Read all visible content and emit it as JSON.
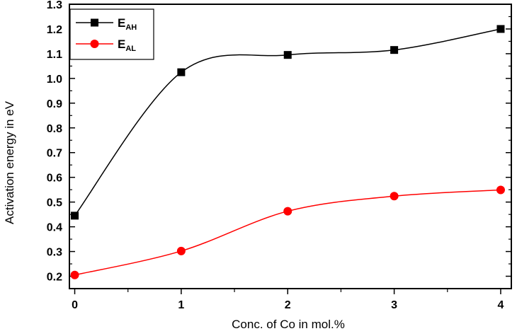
{
  "chart_data": {
    "type": "line",
    "title": "",
    "xlabel": "Conc. of Co in mol.%",
    "ylabel": "Activation energy in eV",
    "xlim": [
      -0.05,
      4.1
    ],
    "ylim": [
      0.15,
      1.3
    ],
    "xticks": [
      0,
      1,
      2,
      3,
      4
    ],
    "xtick_labels": [
      "0",
      "1",
      "2",
      "3",
      "4"
    ],
    "yticks": [
      0.2,
      0.3,
      0.4,
      0.5,
      0.6,
      0.7,
      0.8,
      0.9,
      1.0,
      1.1,
      1.2,
      1.3
    ],
    "ytick_labels": [
      "0.2",
      "0.3",
      "0.4",
      "0.5",
      "0.6",
      "0.7",
      "0.8",
      "0.9",
      "1.0",
      "1.1",
      "1.2",
      "1.3"
    ],
    "grid": false,
    "legend_position": "top-left",
    "series": [
      {
        "name_main": "E",
        "name_sub": "AH",
        "color": "#000000",
        "marker": "square",
        "x": [
          0,
          1,
          2,
          3,
          4
        ],
        "y": [
          0.445,
          1.025,
          1.095,
          1.115,
          1.2
        ]
      },
      {
        "name_main": "E",
        "name_sub": "AL",
        "color": "#ff0000",
        "marker": "circle",
        "x": [
          0,
          1,
          2,
          3,
          4
        ],
        "y": [
          0.205,
          0.302,
          0.463,
          0.524,
          0.549
        ]
      }
    ]
  }
}
